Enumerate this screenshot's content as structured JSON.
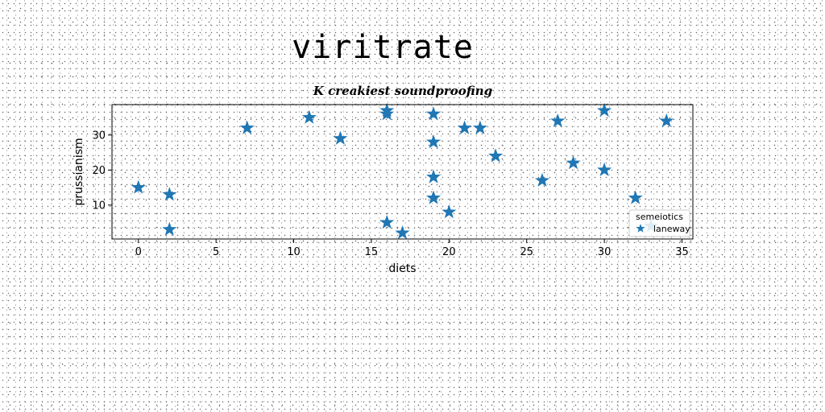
{
  "page": {
    "title": "viritrate"
  },
  "chart_data": {
    "type": "scatter",
    "title": "K creakiest soundproofing",
    "xlabel": "diets",
    "ylabel": "prussianism",
    "xlim": [
      -1.7,
      35.7
    ],
    "ylim": [
      0.3,
      38.7
    ],
    "xticks": [
      0,
      5,
      10,
      15,
      20,
      25,
      30,
      35
    ],
    "yticks": [
      10,
      20,
      30
    ],
    "marker": "star",
    "color": "#1f77b4",
    "grid": false,
    "legend": {
      "title": "semeiotics",
      "position": "lower-right"
    },
    "series": [
      {
        "name": "laneway",
        "points": [
          [
            0,
            15
          ],
          [
            2,
            13
          ],
          [
            2,
            3
          ],
          [
            7,
            32
          ],
          [
            11,
            35
          ],
          [
            13,
            29
          ],
          [
            16,
            37
          ],
          [
            16,
            36
          ],
          [
            16,
            5
          ],
          [
            17,
            2
          ],
          [
            19,
            36
          ],
          [
            19,
            28
          ],
          [
            19,
            18
          ],
          [
            19,
            12
          ],
          [
            20,
            8
          ],
          [
            21,
            32
          ],
          [
            22,
            32
          ],
          [
            23,
            24
          ],
          [
            26,
            17
          ],
          [
            27,
            34
          ],
          [
            28,
            22
          ],
          [
            30,
            37
          ],
          [
            30,
            20
          ],
          [
            32,
            12
          ],
          [
            33,
            4
          ],
          [
            34,
            34
          ]
        ]
      }
    ]
  }
}
